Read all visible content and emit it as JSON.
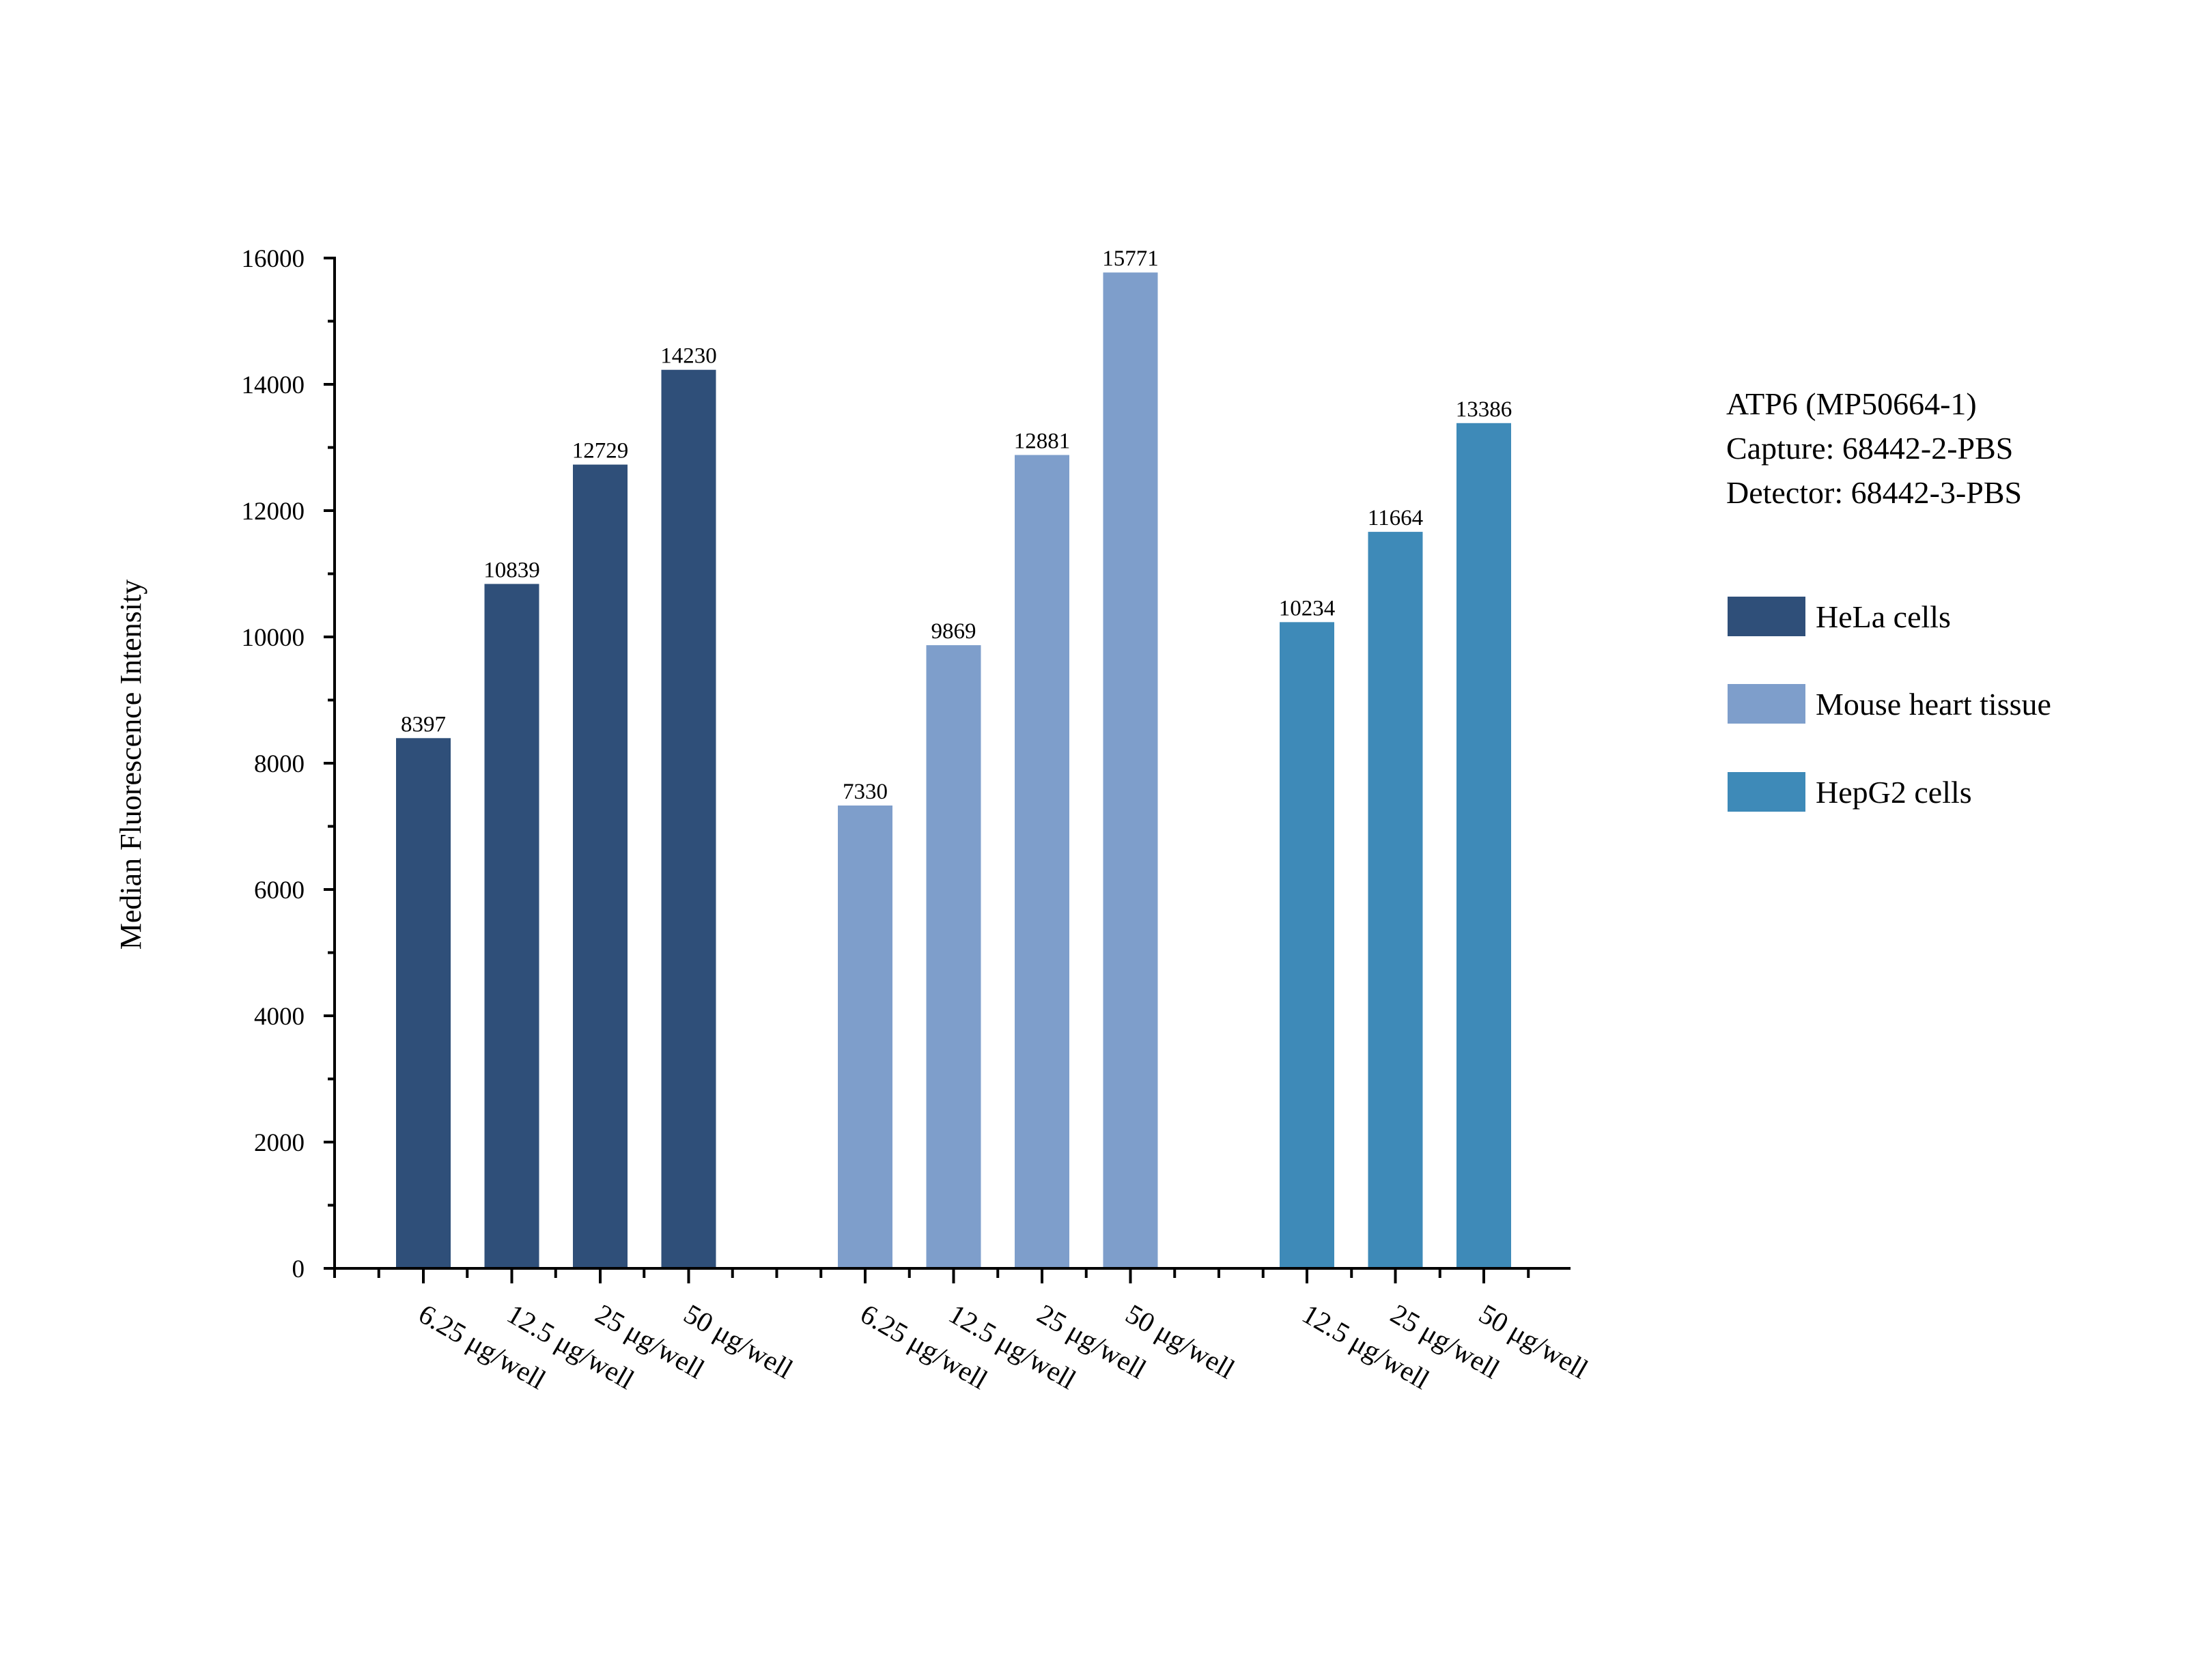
{
  "chart_data": {
    "type": "bar",
    "title": "",
    "xlabel": "",
    "ylabel": "Median Fluorescence Intensity",
    "ylim": [
      0,
      16000
    ],
    "yticks": [
      0,
      2000,
      4000,
      6000,
      8000,
      10000,
      12000,
      14000,
      16000
    ],
    "grid": false,
    "legend_position": "right",
    "info_lines": [
      "ATP6 (MP50664-1)",
      "Capture: 68442-2-PBS",
      "Detector: 68442-3-PBS"
    ],
    "groups": [
      {
        "name": "HeLa cells",
        "color": "#2f4f79",
        "categories": [
          "6.25 μg/well",
          "12.5 μg/well",
          "25 μg/well",
          "50 μg/well"
        ],
        "values": [
          8397,
          10839,
          12729,
          14230
        ]
      },
      {
        "name": "Mouse heart tissue",
        "color": "#7e9ecb",
        "categories": [
          "6.25 μg/well",
          "12.5 μg/well",
          "25 μg/well",
          "50 μg/well"
        ],
        "values": [
          7330,
          9869,
          12881,
          15771
        ]
      },
      {
        "name": "HepG2 cells",
        "color": "#3e8ab8",
        "categories": [
          "12.5 μg/well",
          "25 μg/well",
          "50 μg/well"
        ],
        "values": [
          10234,
          11664,
          13386
        ]
      }
    ]
  }
}
